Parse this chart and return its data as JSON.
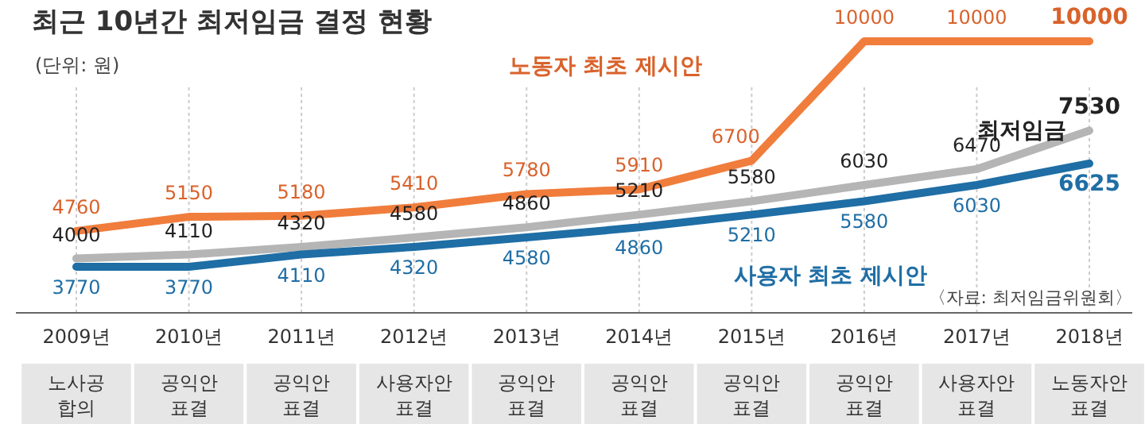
{
  "chart_data": {
    "type": "line",
    "title": "최근 10년간 최저임금 결정 현황",
    "subtitle": "(단위: 원)",
    "categories": [
      "2009년",
      "2010년",
      "2011년",
      "2012년",
      "2013년",
      "2014년",
      "2015년",
      "2016년",
      "2017년",
      "2018년"
    ],
    "series": [
      {
        "name": "노동자 최초 제시안",
        "color": "#f07d3c",
        "values": [
          4760,
          5150,
          5180,
          5410,
          5780,
          5910,
          6700,
          10000,
          10000,
          10000
        ]
      },
      {
        "name": "최저임금",
        "color": "#b5b5b5",
        "values": [
          4000,
          4110,
          4320,
          4580,
          4860,
          5210,
          5580,
          6030,
          6470,
          7530
        ]
      },
      {
        "name": "사용자 최초 제시안",
        "color": "#1f6ea5",
        "values": [
          3770,
          3770,
          4110,
          4320,
          4580,
          4860,
          5210,
          5580,
          6030,
          6625
        ]
      }
    ],
    "data_labels": true,
    "grid": "x",
    "legend": false,
    "line_style": "solid",
    "marker": "none",
    "annotations": [
      "〈자료: 최저임금위원회〉",
      "노사공\n합의",
      "공익안\n표결",
      "공익안\n표결",
      "사용자안\n표결",
      "공익안\n표결",
      "공익안\n표결",
      "공익안\n표결",
      "공익안\n표결",
      "사용자안\n표결",
      "노동자안\n표결"
    ]
  }
}
